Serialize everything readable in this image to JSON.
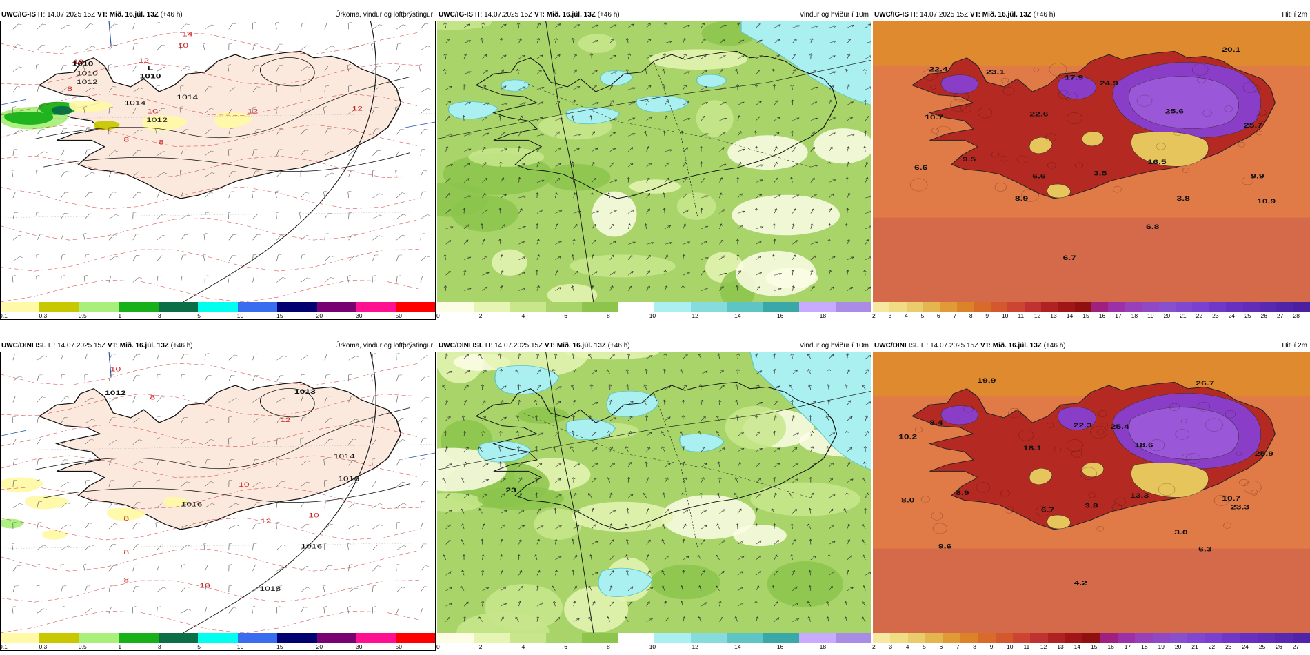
{
  "panels": [
    {
      "id": "p1",
      "model": "UWC/IG-IS",
      "it": "IT: 14.07.2025 15Z",
      "vt_label": "VT:",
      "vt": "Mið. 16.júl. 13Z",
      "lead": "(+46 h)",
      "title": "Úrkoma, vindur og loftþrýstingur",
      "type": "precip",
      "scale_colors": [
        "#fff9a8",
        "#c8c800",
        "#a8f07a",
        "#18b018",
        "#0a6e46",
        "#00ffee",
        "#3a6cf0",
        "#000070",
        "#780070",
        "#ff1090",
        "#ff0000"
      ],
      "scale_labels": [
        "0.1",
        "0.3",
        "0.5",
        "1",
        "3",
        "5",
        "10",
        "15",
        "20",
        "30",
        "50"
      ],
      "map_labels": [
        {
          "t": "1010",
          "kind": "iso"
        },
        {
          "t": "L",
          "kind": "val"
        },
        {
          "t": "1010",
          "kind": "val"
        },
        {
          "t": "1012",
          "kind": "iso"
        },
        {
          "t": "1014",
          "kind": "iso"
        },
        {
          "t": "1012",
          "kind": "iso"
        },
        {
          "t": "12",
          "kind": "red"
        },
        {
          "t": "14",
          "kind": "red"
        },
        {
          "t": "10",
          "kind": "red"
        },
        {
          "t": "12",
          "kind": "red"
        },
        {
          "t": "8",
          "kind": "red"
        },
        {
          "t": "10",
          "kind": "red"
        },
        {
          "t": "8",
          "kind": "red"
        },
        {
          "t": "8",
          "kind": "red"
        },
        {
          "t": "12",
          "kind": "red"
        },
        {
          "t": "1010",
          "kind": "val"
        },
        {
          "t": "1014",
          "kind": "iso"
        },
        {
          "t": "12",
          "kind": "red"
        }
      ]
    },
    {
      "id": "p2",
      "model": "UWC/IG-IS",
      "it": "IT: 14.07.2025 15Z",
      "vt_label": "VT:",
      "vt": "Mið. 16.júl. 13Z",
      "lead": "(+46 h)",
      "title": "Vindur og hviður í 10m",
      "type": "wind",
      "scale_colors": [
        "#fdfde6",
        "#e6f5b4",
        "#c8e68c",
        "#a8d46a",
        "#8cc44c",
        "#ffffff",
        "#aaf0f0",
        "#86dcdc",
        "#5ec4c4",
        "#3aa8a8",
        "#c8aaff",
        "#a88ce6"
      ],
      "scale_labels": [
        "0",
        "2",
        "4",
        "6",
        "8",
        "10",
        "12",
        "14",
        "16",
        "18"
      ],
      "map_labels": []
    },
    {
      "id": "p3",
      "model": "UWC/IG-IS",
      "it": "IT: 14.07.2025 15Z",
      "vt_label": "VT:",
      "vt": "Mið. 16.júl. 13Z",
      "lead": "(+46 h)",
      "title": "Hiti í 2m",
      "type": "temp",
      "scale_colors": [
        "#f6e8a0",
        "#f0dc84",
        "#eacc6c",
        "#e4b650",
        "#e09a36",
        "#dc8228",
        "#d86a2a",
        "#d4582e",
        "#cc4432",
        "#c03232",
        "#b02222",
        "#a01618",
        "#901010",
        "#a02080",
        "#9c30a8",
        "#9840b8",
        "#9048c4",
        "#8850cc",
        "#8048d0",
        "#7a40d0",
        "#7038c8",
        "#6830c0",
        "#602cb8",
        "#5828b0",
        "#5024a8",
        "#4a20a0"
      ],
      "scale_labels": [
        "2",
        "3",
        "4",
        "5",
        "6",
        "7",
        "8",
        "9",
        "10",
        "11",
        "12",
        "13",
        "14",
        "15",
        "16",
        "17",
        "18",
        "19",
        "20",
        "21",
        "22",
        "23",
        "24",
        "25",
        "26",
        "27",
        "28"
      ],
      "map_labels": [
        {
          "t": "22.4"
        },
        {
          "t": "23.1"
        },
        {
          "t": "17.9"
        },
        {
          "t": "24.9"
        },
        {
          "t": "20.1"
        },
        {
          "t": "25.6"
        },
        {
          "t": "10.7"
        },
        {
          "t": "22.6"
        },
        {
          "t": "25.7"
        },
        {
          "t": "9.5"
        },
        {
          "t": "6.6"
        },
        {
          "t": "16.5"
        },
        {
          "t": "6.6"
        },
        {
          "t": "3.5"
        },
        {
          "t": "9.9"
        },
        {
          "t": "8.9"
        },
        {
          "t": "3.8"
        },
        {
          "t": "10.9"
        },
        {
          "t": "6.8"
        },
        {
          "t": "6.7"
        }
      ]
    },
    {
      "id": "p4",
      "model": "UWC/DINI ISL",
      "it": "IT: 14.07.2025 15Z",
      "vt_label": "VT:",
      "vt": "Mið. 16.júl. 13Z",
      "lead": "(+46 h)",
      "title": "Úrkoma, vindur og loftþrýstingur",
      "type": "precip",
      "scale_colors": [
        "#fff9a8",
        "#c8c800",
        "#a8f07a",
        "#18b018",
        "#0a6e46",
        "#00ffee",
        "#3a6cf0",
        "#000070",
        "#780070",
        "#ff1090",
        "#ff0000"
      ],
      "scale_labels": [
        "0.1",
        "0.3",
        "0.5",
        "1",
        "3",
        "5",
        "10",
        "15",
        "20",
        "30",
        "50"
      ],
      "map_labels": [
        {
          "t": "1012",
          "kind": "val"
        },
        {
          "t": "1013",
          "kind": "val"
        },
        {
          "t": "10",
          "kind": "red"
        },
        {
          "t": "8",
          "kind": "red"
        },
        {
          "t": "12",
          "kind": "red"
        },
        {
          "t": "1014",
          "kind": "iso"
        },
        {
          "t": "1016",
          "kind": "iso"
        },
        {
          "t": "10",
          "kind": "red"
        },
        {
          "t": "12",
          "kind": "red"
        },
        {
          "t": "8",
          "kind": "red"
        },
        {
          "t": "1016",
          "kind": "iso"
        },
        {
          "t": "10",
          "kind": "red"
        },
        {
          "t": "1016",
          "kind": "iso"
        },
        {
          "t": "8",
          "kind": "red"
        },
        {
          "t": "1018",
          "kind": "iso"
        },
        {
          "t": "8",
          "kind": "red"
        },
        {
          "t": "10",
          "kind": "red"
        }
      ]
    },
    {
      "id": "p5",
      "model": "UWC/DINI ISL",
      "it": "IT: 14.07.2025 15Z",
      "vt_label": "VT:",
      "vt": "Mið. 16.júl. 13Z",
      "lead": "(+46 h)",
      "title": "Vindur og hviður í 10m",
      "type": "wind",
      "scale_colors": [
        "#fdfde6",
        "#e6f5b4",
        "#c8e68c",
        "#a8d46a",
        "#8cc44c",
        "#ffffff",
        "#aaf0f0",
        "#86dcdc",
        "#5ec4c4",
        "#3aa8a8",
        "#c8aaff",
        "#a88ce6"
      ],
      "scale_labels": [
        "0",
        "2",
        "4",
        "6",
        "8",
        "10",
        "12",
        "14",
        "16",
        "18"
      ],
      "map_labels": [
        {
          "t": "23"
        }
      ]
    },
    {
      "id": "p6",
      "model": "UWC/DINI ISL",
      "it": "IT: 14.07.2025 15Z",
      "vt_label": "VT:",
      "vt": "Mið. 16.júl. 13Z",
      "lead": "(+46 h)",
      "title": "Hiti í 2m",
      "type": "temp",
      "scale_colors": [
        "#f6e8a0",
        "#f0dc84",
        "#eacc6c",
        "#e4b650",
        "#e09a36",
        "#dc8228",
        "#d86a2a",
        "#d4582e",
        "#cc4432",
        "#c03232",
        "#b02222",
        "#a01618",
        "#901010",
        "#a02080",
        "#9c30a8",
        "#9840b8",
        "#9048c4",
        "#8850cc",
        "#8048d0",
        "#7a40d0",
        "#7038c8",
        "#6830c0",
        "#602cb8",
        "#5828b0",
        "#5024a8"
      ],
      "scale_labels": [
        "2",
        "3",
        "4",
        "5",
        "6",
        "7",
        "8",
        "9",
        "10",
        "11",
        "12",
        "13",
        "14",
        "15",
        "16",
        "17",
        "18",
        "19",
        "20",
        "21",
        "22",
        "23",
        "24",
        "25",
        "26",
        "27"
      ],
      "map_labels": [
        {
          "t": "19.9"
        },
        {
          "t": "26.7"
        },
        {
          "t": "8.4"
        },
        {
          "t": "22.3"
        },
        {
          "t": "25.4"
        },
        {
          "t": "10.2"
        },
        {
          "t": "18.1"
        },
        {
          "t": "18.6"
        },
        {
          "t": "25.9"
        },
        {
          "t": "8.9"
        },
        {
          "t": "13.3"
        },
        {
          "t": "10.7"
        },
        {
          "t": "8.0"
        },
        {
          "t": "6.7"
        },
        {
          "t": "3.8"
        },
        {
          "t": "23.3"
        },
        {
          "t": "3.0"
        },
        {
          "t": "9.6"
        },
        {
          "t": "6.3"
        },
        {
          "t": "4.2"
        }
      ]
    }
  ]
}
